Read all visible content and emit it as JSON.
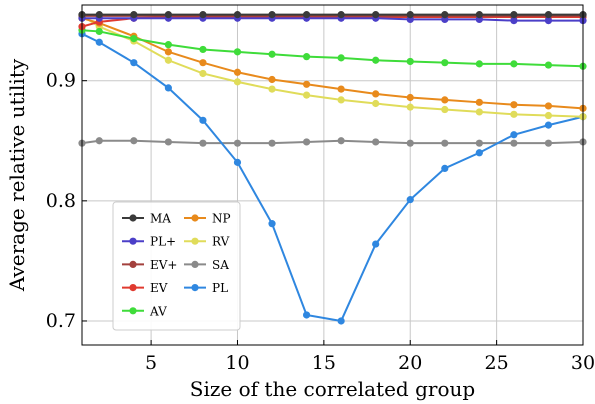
{
  "chart_data": {
    "type": "line",
    "title": "",
    "xlabel": "Size of the correlated group",
    "ylabel": "Average relative utility",
    "xlim": [
      1,
      30
    ],
    "ylim": [
      0.68,
      0.963
    ],
    "xticks": [
      5,
      10,
      15,
      20,
      25,
      30
    ],
    "xtick_labels": [
      "5",
      "10",
      "15",
      "20",
      "25",
      "30"
    ],
    "yticks": [
      0.7,
      0.8,
      0.9
    ],
    "ytick_labels": [
      "0.7",
      "0.8",
      "0.9"
    ],
    "grid": true,
    "legend_position": "lower-left",
    "x": [
      1,
      2,
      4,
      6,
      8,
      10,
      12,
      14,
      16,
      18,
      20,
      22,
      24,
      26,
      28,
      30
    ],
    "series": [
      {
        "name": "MA",
        "color": "#3a3a3a",
        "values": [
          0.955,
          0.955,
          0.955,
          0.955,
          0.955,
          0.955,
          0.955,
          0.955,
          0.955,
          0.955,
          0.955,
          0.955,
          0.955,
          0.955,
          0.955,
          0.955
        ]
      },
      {
        "name": "PL+",
        "color": "#4b3fc8",
        "values": [
          0.952,
          0.952,
          0.952,
          0.952,
          0.952,
          0.952,
          0.952,
          0.952,
          0.952,
          0.952,
          0.951,
          0.951,
          0.951,
          0.95,
          0.95,
          0.95
        ]
      },
      {
        "name": "EV+",
        "color": "#a3403d",
        "values": [
          0.954,
          0.954,
          0.954,
          0.954,
          0.954,
          0.954,
          0.954,
          0.954,
          0.954,
          0.954,
          0.954,
          0.954,
          0.954,
          0.954,
          0.954,
          0.954
        ]
      },
      {
        "name": "EV",
        "color": "#e03a2f",
        "values": [
          0.945,
          0.949,
          0.952,
          0.953,
          0.953,
          0.953,
          0.953,
          0.953,
          0.953,
          0.953,
          0.953,
          0.953,
          0.953,
          0.953,
          0.953,
          0.953
        ]
      },
      {
        "name": "AV",
        "color": "#3fdc3a",
        "values": [
          0.942,
          0.941,
          0.935,
          0.93,
          0.926,
          0.924,
          0.922,
          0.92,
          0.919,
          0.917,
          0.916,
          0.915,
          0.914,
          0.914,
          0.913,
          0.912
        ]
      },
      {
        "name": "NP",
        "color": "#e88a1c",
        "values": [
          0.952,
          0.948,
          0.937,
          0.924,
          0.915,
          0.907,
          0.901,
          0.897,
          0.893,
          0.889,
          0.886,
          0.884,
          0.882,
          0.88,
          0.879,
          0.877
        ]
      },
      {
        "name": "RV",
        "color": "#e0dc5a",
        "values": [
          0.954,
          0.945,
          0.933,
          0.917,
          0.906,
          0.899,
          0.893,
          0.888,
          0.884,
          0.881,
          0.878,
          0.876,
          0.874,
          0.872,
          0.871,
          0.87
        ]
      },
      {
        "name": "SA",
        "color": "#8a8a8a",
        "values": [
          0.848,
          0.85,
          0.85,
          0.849,
          0.848,
          0.848,
          0.848,
          0.849,
          0.85,
          0.849,
          0.848,
          0.848,
          0.848,
          0.848,
          0.848,
          0.849
        ]
      },
      {
        "name": "PL",
        "color": "#2f87e0",
        "values": [
          0.939,
          0.932,
          0.915,
          0.894,
          0.867,
          0.832,
          0.781,
          0.705,
          0.7,
          0.764,
          0.801,
          0.827,
          0.84,
          0.855,
          0.863,
          0.87
        ]
      }
    ],
    "legend_columns": [
      [
        "MA",
        "PL+",
        "EV+",
        "EV",
        "AV"
      ],
      [
        "NP",
        "RV",
        "SA",
        "PL"
      ]
    ]
  }
}
